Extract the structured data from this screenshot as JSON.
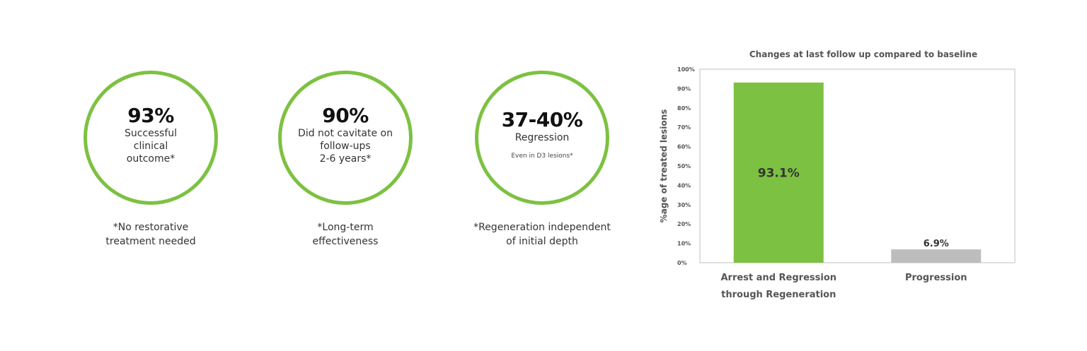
{
  "stats": [
    {
      "value": "93%",
      "lines": [
        "Successful",
        "clinical",
        "outcome*"
      ],
      "sub": "",
      "note": [
        "*No restorative",
        "treatment needed"
      ]
    },
    {
      "value": "90%",
      "lines": [
        "Did not cavitate on",
        "follow-ups",
        "2-6 years*"
      ],
      "sub": "",
      "note": [
        "*Long-term",
        "effectiveness"
      ]
    },
    {
      "value": "37-40%",
      "lines": [
        "Regression"
      ],
      "sub": "Even in D3 lesions*",
      "note": [
        "*Regeneration independent",
        "of initial depth"
      ]
    }
  ],
  "colors": {
    "accent": "#7dc142",
    "gray": "#bdbdbd"
  },
  "chart_data": {
    "type": "bar",
    "title": "Changes at last follow up compared to baseline",
    "ylabel": "%age of treated lesions",
    "xlabel": "",
    "categories": [
      [
        "Arrest and Regression",
        "through Regeneration"
      ],
      [
        "Progression"
      ]
    ],
    "values": [
      93.1,
      6.9
    ],
    "data_labels": [
      "93.1%",
      "6.9%"
    ],
    "bar_colors": [
      "#7dc142",
      "#bdbdbd"
    ],
    "ylim": [
      0,
      100
    ],
    "yticks": [
      "0%",
      "10%",
      "20%",
      "30%",
      "40%",
      "50%",
      "60%",
      "70%",
      "80%",
      "90%",
      "100%"
    ],
    "grid": false,
    "legend": "none"
  }
}
